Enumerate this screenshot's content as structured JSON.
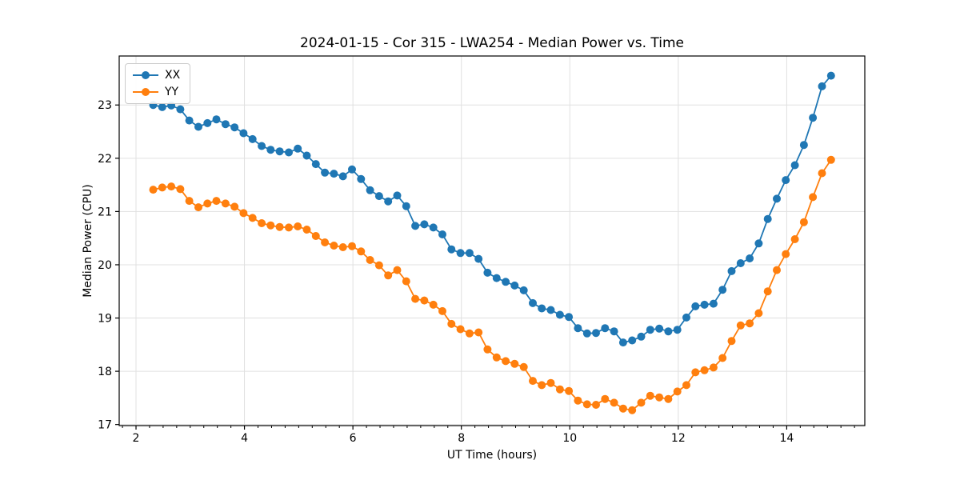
{
  "chart_data": {
    "type": "line",
    "title": "2024-01-15 - Cor 315 - LWA254 - Median Power vs. Time",
    "xlabel": "UT Time (hours)",
    "ylabel": "Median Power (CPU)",
    "xlim": [
      1.69,
      15.44
    ],
    "ylim": [
      16.98,
      23.92
    ],
    "x_major_ticks": [
      2,
      4,
      6,
      8,
      10,
      12,
      14
    ],
    "x_minor_step": 0.25,
    "y_major_ticks": [
      17,
      18,
      19,
      20,
      21,
      22,
      23
    ],
    "grid": true,
    "grid_color": "#e0e0e0",
    "spine_color": "#000000",
    "background_color": "#ffffff",
    "legend_position": "upper-left",
    "marker": "circle",
    "x": [
      2.317,
      2.483,
      2.65,
      2.817,
      2.983,
      3.15,
      3.317,
      3.483,
      3.65,
      3.817,
      3.983,
      4.15,
      4.317,
      4.483,
      4.65,
      4.817,
      4.983,
      5.15,
      5.317,
      5.483,
      5.65,
      5.817,
      5.983,
      6.15,
      6.317,
      6.483,
      6.65,
      6.817,
      6.983,
      7.15,
      7.317,
      7.483,
      7.65,
      7.817,
      7.983,
      8.15,
      8.317,
      8.483,
      8.65,
      8.817,
      8.983,
      9.15,
      9.317,
      9.483,
      9.65,
      9.817,
      9.983,
      10.15,
      10.317,
      10.483,
      10.65,
      10.817,
      10.983,
      11.15,
      11.317,
      11.483,
      11.65,
      11.817,
      11.983,
      12.15,
      12.317,
      12.483,
      12.65,
      12.817,
      12.983,
      13.15,
      13.317,
      13.483,
      13.65,
      13.817,
      13.983,
      14.15,
      14.317,
      14.483,
      14.65,
      14.817
    ],
    "series": [
      {
        "name": "XX",
        "color": "#1f77b4",
        "values": [
          23.0,
          22.96,
          22.99,
          22.92,
          22.71,
          22.59,
          22.66,
          22.73,
          22.64,
          22.58,
          22.47,
          22.36,
          22.23,
          22.16,
          22.13,
          22.11,
          22.18,
          22.05,
          21.89,
          21.73,
          21.71,
          21.66,
          21.79,
          21.61,
          21.4,
          21.29,
          21.19,
          21.3,
          21.1,
          20.73,
          20.76,
          20.7,
          20.57,
          20.29,
          20.22,
          20.22,
          20.11,
          19.85,
          19.75,
          19.68,
          19.61,
          19.52,
          19.28,
          19.18,
          19.15,
          19.06,
          19.02,
          18.81,
          18.71,
          18.72,
          18.81,
          18.75,
          18.54,
          18.58,
          18.65,
          18.78,
          18.8,
          18.75,
          18.78,
          19.01,
          19.22,
          19.25,
          19.27,
          19.53,
          19.88,
          20.03,
          20.12,
          20.4,
          20.86,
          21.24,
          21.59,
          21.87,
          22.25,
          22.76,
          23.35,
          23.55
        ]
      },
      {
        "name": "YY",
        "color": "#ff7f0e",
        "values": [
          21.41,
          21.45,
          21.47,
          21.42,
          21.2,
          21.08,
          21.15,
          21.2,
          21.15,
          21.09,
          20.97,
          20.88,
          20.78,
          20.74,
          20.71,
          20.7,
          20.72,
          20.66,
          20.54,
          20.42,
          20.36,
          20.33,
          20.35,
          20.25,
          20.09,
          19.99,
          19.8,
          19.9,
          19.69,
          19.36,
          19.33,
          19.25,
          19.13,
          18.89,
          18.79,
          18.71,
          18.73,
          18.41,
          18.26,
          18.19,
          18.14,
          18.08,
          17.82,
          17.74,
          17.78,
          17.66,
          17.63,
          17.45,
          17.38,
          17.37,
          17.48,
          17.41,
          17.3,
          17.27,
          17.41,
          17.54,
          17.51,
          17.48,
          17.62,
          17.74,
          17.98,
          18.02,
          18.07,
          18.25,
          18.57,
          18.86,
          18.9,
          19.09,
          19.5,
          19.9,
          20.2,
          20.48,
          20.8,
          21.27,
          21.72,
          21.97
        ]
      }
    ]
  }
}
